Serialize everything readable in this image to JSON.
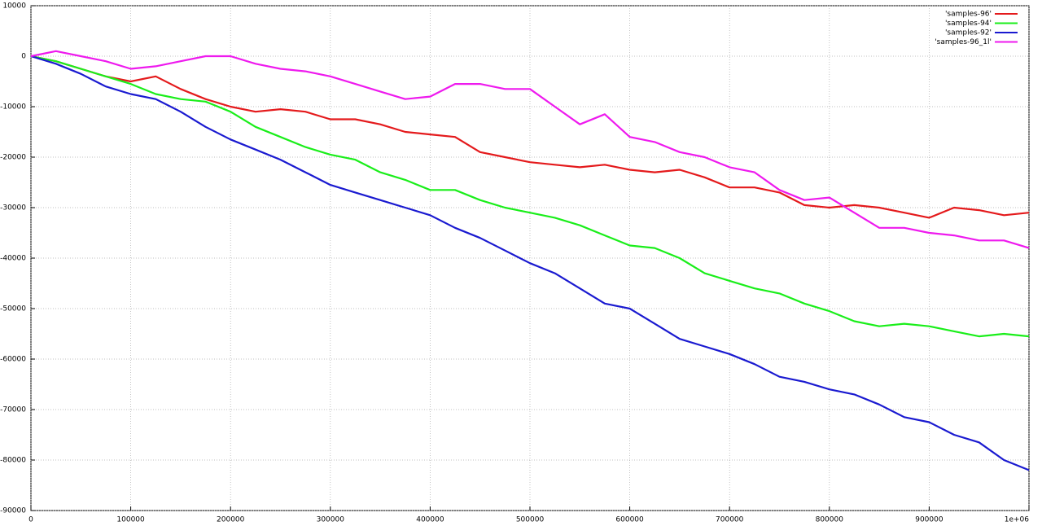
{
  "chart_data": {
    "type": "line",
    "x": [
      0,
      25000,
      50000,
      75000,
      100000,
      125000,
      150000,
      175000,
      200000,
      225000,
      250000,
      275000,
      300000,
      325000,
      350000,
      375000,
      400000,
      425000,
      450000,
      475000,
      500000,
      525000,
      550000,
      575000,
      600000,
      625000,
      650000,
      675000,
      700000,
      725000,
      750000,
      775000,
      800000,
      825000,
      850000,
      875000,
      900000,
      925000,
      950000,
      975000,
      1000000
    ],
    "series": [
      {
        "name": "'samples-96'",
        "color": "#e41a1c",
        "values": [
          0,
          -1000,
          -2500,
          -4000,
          -5000,
          -4000,
          -6500,
          -8500,
          -10000,
          -11000,
          -10500,
          -11000,
          -12500,
          -12500,
          -13500,
          -15000,
          -15500,
          -16000,
          -19000,
          -20000,
          -21000,
          -21500,
          -22000,
          -21500,
          -22500,
          -23000,
          -22500,
          -24000,
          -26000,
          -26000,
          -27000,
          -29500,
          -30000,
          -29500,
          -30000,
          -31000,
          -32000,
          -30000,
          -30500,
          -31500,
          -31000
        ]
      },
      {
        "name": "'samples-94'",
        "color": "#1aee1a",
        "values": [
          0,
          -1000,
          -2500,
          -4000,
          -5500,
          -7500,
          -8500,
          -9000,
          -11000,
          -14000,
          -16000,
          -18000,
          -19500,
          -20500,
          -23000,
          -24500,
          -26500,
          -26500,
          -28500,
          -30000,
          -31000,
          -32000,
          -33500,
          -35500,
          -37500,
          -38000,
          -40000,
          -43000,
          -44500,
          -46000,
          -47000,
          -49000,
          -50500,
          -52500,
          -53500,
          -53000,
          -53500,
          -54500,
          -55500,
          -55000,
          -55500
        ]
      },
      {
        "name": "'samples-92'",
        "color": "#1a1ad0",
        "values": [
          0,
          -1500,
          -3500,
          -6000,
          -7500,
          -8500,
          -11000,
          -14000,
          -16500,
          -18500,
          -20500,
          -23000,
          -25500,
          -27000,
          -28500,
          -30000,
          -31500,
          -34000,
          -36000,
          -38500,
          -41000,
          -43000,
          -46000,
          -49000,
          -50000,
          -53000,
          -56000,
          -57500,
          -59000,
          -61000,
          -63500,
          -64500,
          -66000,
          -67000,
          -69000,
          -71500,
          -72500,
          -75000,
          -76500,
          -80000,
          -82000
        ]
      },
      {
        "name": "'samples-96_1l'",
        "color": "#ee1aee",
        "values": [
          0,
          1000,
          0,
          -1000,
          -2500,
          -2000,
          -1000,
          0,
          0,
          -1500,
          -2500,
          -3000,
          -4000,
          -5500,
          -7000,
          -8500,
          -8000,
          -5500,
          -5500,
          -6500,
          -6500,
          -10000,
          -13500,
          -11500,
          -16000,
          -17000,
          -19000,
          -20000,
          -22000,
          -23000,
          -26500,
          -28500,
          -28000,
          -31000,
          -34000,
          -34000,
          -35000,
          -35500,
          -36500,
          -36500,
          -38000
        ]
      }
    ],
    "xlim": [
      0,
      1000000
    ],
    "xticks": [
      0,
      100000,
      200000,
      300000,
      400000,
      500000,
      600000,
      700000,
      800000,
      900000,
      {
        "value": 1000000,
        "label": "1e+06"
      }
    ],
    "ylim": [
      -90000,
      10000
    ],
    "yticks": [
      -90000,
      -80000,
      -70000,
      -60000,
      -50000,
      -40000,
      -30000,
      -20000,
      -10000,
      0,
      10000
    ],
    "grid": true,
    "legend": "top-right"
  }
}
